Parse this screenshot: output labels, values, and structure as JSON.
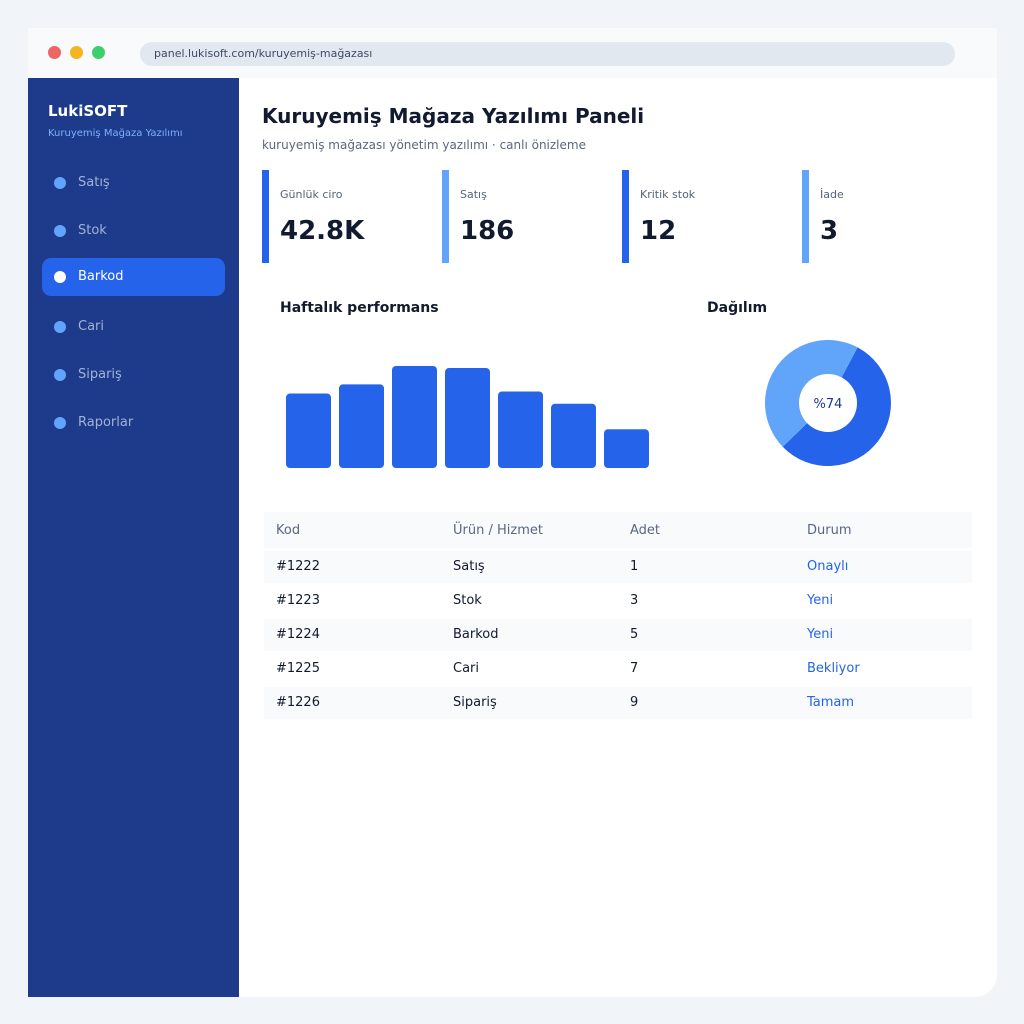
{
  "browser": {
    "url": "panel.lukisoft.com/kuruyemiş-mağazası"
  },
  "sidebar": {
    "brand": "LukiSOFT",
    "brand_sub": "Kuruyemiş Mağaza Yazılımı",
    "items": [
      {
        "label": "Satış",
        "active": false
      },
      {
        "label": "Stok",
        "active": false
      },
      {
        "label": "Barkod",
        "active": true
      },
      {
        "label": "Cari",
        "active": false
      },
      {
        "label": "Sipariş",
        "active": false
      },
      {
        "label": "Raporlar",
        "active": false
      }
    ]
  },
  "header": {
    "title": "Kuruyemiş Mağaza Yazılımı Paneli",
    "subtitle": "kuruyemiş mağazası yönetim yazılımı · canlı önizleme"
  },
  "kpis": [
    {
      "label": "Günlük ciro",
      "value": "42.8K",
      "accent": "#2563eb"
    },
    {
      "label": "Satış",
      "value": "186",
      "accent": "#60a5fa"
    },
    {
      "label": "Kritik stok",
      "value": "12",
      "accent": "#2563eb"
    },
    {
      "label": "İade",
      "value": "3",
      "accent": "#60a5fa"
    }
  ],
  "charts": {
    "bar_title": "Haftalık performans",
    "donut_title": "Dağılım",
    "donut_label": "%74"
  },
  "chart_data": [
    {
      "type": "bar",
      "title": "Haftalık performans",
      "values": [
        73,
        82,
        100,
        98,
        75,
        63,
        38
      ],
      "ylim": [
        0,
        100
      ],
      "color": "#2563eb"
    },
    {
      "type": "pie",
      "title": "Dağılım",
      "center_label": "%74",
      "slices": [
        {
          "value": 55,
          "color": "#2563eb"
        },
        {
          "value": 45,
          "color": "#60a5fa"
        }
      ]
    }
  ],
  "table": {
    "columns": [
      "Kod",
      "Ürün / Hizmet",
      "Adet",
      "Durum"
    ],
    "rows": [
      [
        "#1222",
        "Satış",
        "1",
        "Onaylı"
      ],
      [
        "#1223",
        "Stok",
        "3",
        "Yeni"
      ],
      [
        "#1224",
        "Barkod",
        "5",
        "Yeni"
      ],
      [
        "#1225",
        "Cari",
        "7",
        "Bekliyor"
      ],
      [
        "#1226",
        "Sipariş",
        "9",
        "Tamam"
      ]
    ]
  },
  "colors": {
    "primary": "#2563eb",
    "light": "#60a5fa",
    "sidebar": "#1e3a8a"
  }
}
